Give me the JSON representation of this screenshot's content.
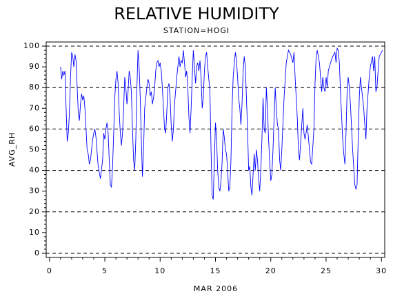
{
  "chart_data": {
    "type": "line",
    "title": "RELATIVE HUMIDITY",
    "subtitle": "STATION=HOGI",
    "x_label": "MAR 2006",
    "y_label": "AVG_RH",
    "xlim": [
      -0.3,
      30.3
    ],
    "xticks": [
      0,
      5,
      10,
      15,
      20,
      25,
      30
    ],
    "ylim": [
      -2,
      102
    ],
    "yticks": [
      0,
      10,
      20,
      30,
      40,
      50,
      60,
      70,
      80,
      90,
      100
    ],
    "grid_lines": [
      0,
      20,
      40,
      60,
      80,
      100
    ],
    "grid": true,
    "series": [
      {
        "name": "AVG_RH",
        "color": "#0000ff",
        "x": [
          1.0,
          1.1,
          1.2,
          1.3,
          1.4,
          1.5,
          1.6,
          1.7,
          1.8,
          1.9,
          2.0,
          2.1,
          2.2,
          2.3,
          2.4,
          2.5,
          2.6,
          2.7,
          2.8,
          2.9,
          3.0,
          3.1,
          3.2,
          3.3,
          3.4,
          3.5,
          3.6,
          3.7,
          3.8,
          3.9,
          4.0,
          4.1,
          4.2,
          4.4,
          4.6,
          4.8,
          4.9,
          5.0,
          5.1,
          5.2,
          5.3,
          5.4,
          5.5,
          5.6,
          5.7,
          5.8,
          5.9,
          6.0,
          6.1,
          6.2,
          6.3,
          6.4,
          6.5,
          6.6,
          6.7,
          6.8,
          6.9,
          7.0,
          7.1,
          7.2,
          7.3,
          7.4,
          7.5,
          7.6,
          7.7,
          7.8,
          7.9,
          8.0,
          8.1,
          8.2,
          8.3,
          8.4,
          8.5,
          8.6,
          8.8,
          8.9,
          9.0,
          9.1,
          9.2,
          9.3,
          9.4,
          9.5,
          9.6,
          9.7,
          9.8,
          9.9,
          10.0,
          10.1,
          10.2,
          10.3,
          10.4,
          10.5,
          10.6,
          10.7,
          10.8,
          10.9,
          11.0,
          11.1,
          11.2,
          11.3,
          11.5,
          11.6,
          11.7,
          11.8,
          11.9,
          12.0,
          12.1,
          12.2,
          12.3,
          12.4,
          12.5,
          12.6,
          12.7,
          12.8,
          12.9,
          13.0,
          13.1,
          13.2,
          13.3,
          13.4,
          13.5,
          13.6,
          13.7,
          13.8,
          13.9,
          14.0,
          14.1,
          14.2,
          14.3,
          14.4,
          14.5,
          14.6,
          14.7,
          14.8,
          14.9,
          15.0,
          15.1,
          15.2,
          15.3,
          15.4,
          15.5,
          15.6,
          15.7,
          15.8,
          15.9,
          16.0,
          16.1,
          16.2,
          16.3,
          16.4,
          16.5,
          16.6,
          16.7,
          16.8,
          16.9,
          17.0,
          17.1,
          17.2,
          17.3,
          17.4,
          17.5,
          17.6,
          17.7,
          17.8,
          17.9,
          18.0,
          18.1,
          18.2,
          18.3,
          18.4,
          18.5,
          18.6,
          18.7,
          18.8,
          18.9,
          19.0,
          19.1,
          19.2,
          19.3,
          19.4,
          19.5,
          19.6,
          19.7,
          19.8,
          19.9,
          20.0,
          20.1,
          20.2,
          20.3,
          20.4,
          20.5,
          20.6,
          20.7,
          20.8,
          20.9,
          21.0,
          21.2,
          21.4,
          21.6,
          21.8,
          22.0,
          22.1,
          22.2,
          22.4,
          22.5,
          22.6,
          22.8,
          22.9,
          23.0,
          23.1,
          23.3,
          23.5,
          23.6,
          23.7,
          23.9,
          24.0,
          24.1,
          24.2,
          24.4,
          24.5,
          24.6,
          24.7,
          24.8,
          24.9,
          25.0,
          25.1,
          25.2,
          25.4,
          25.6,
          25.8,
          25.9,
          26.0,
          26.1,
          26.2,
          26.3,
          26.5,
          26.6,
          26.7,
          26.8,
          26.9,
          27.0,
          27.1,
          27.2,
          27.4,
          27.6,
          27.7,
          27.8,
          27.9,
          28.0,
          28.1,
          28.2,
          28.4,
          28.5,
          28.6,
          28.7,
          28.9,
          29.0,
          29.2,
          29.3,
          29.4,
          29.5,
          29.6,
          29.7,
          29.8,
          30.0,
          30.1
        ],
        "values": [
          90,
          84,
          88,
          86,
          88,
          70,
          54,
          58,
          68,
          85,
          97,
          95,
          90,
          96,
          93,
          80,
          68,
          64,
          72,
          77,
          74,
          76,
          70,
          60,
          50,
          48,
          43,
          45,
          50,
          55,
          58,
          60,
          56,
          42,
          36,
          45,
          58,
          55,
          60,
          63,
          58,
          45,
          33,
          32,
          42,
          58,
          75,
          84,
          88,
          82,
          68,
          58,
          52,
          58,
          70,
          85,
          80,
          72,
          78,
          88,
          85,
          78,
          60,
          45,
          40,
          55,
          80,
          98,
          90,
          75,
          55,
          37,
          50,
          70,
          80,
          84,
          82,
          76,
          78,
          72,
          75,
          80,
          88,
          92,
          93,
          90,
          92,
          88,
          80,
          70,
          60,
          58,
          68,
          80,
          82,
          75,
          62,
          54,
          60,
          72,
          85,
          90,
          95,
          90,
          93,
          92,
          98,
          92,
          85,
          88,
          80,
          66,
          58,
          70,
          85,
          98,
          90,
          82,
          90,
          92,
          88,
          93,
          85,
          70,
          75,
          88,
          95,
          97,
          90,
          84,
          78,
          50,
          28,
          26,
          45,
          63,
          55,
          40,
          32,
          30,
          35,
          44,
          60,
          56,
          50,
          48,
          40,
          30,
          32,
          45,
          70,
          85,
          92,
          97,
          93,
          85,
          75,
          70,
          62,
          72,
          88,
          95,
          90,
          75,
          60,
          40,
          42,
          32,
          28,
          38,
          48,
          40,
          50,
          45,
          36,
          30,
          40,
          55,
          75,
          60,
          58,
          80,
          70,
          55,
          45,
          35,
          38,
          50,
          65,
          80,
          70,
          62,
          60,
          45,
          40,
          50,
          75,
          92,
          98,
          96,
          92,
          97,
          85,
          65,
          50,
          45,
          62,
          70,
          58,
          55,
          62,
          50,
          44,
          43,
          60,
          82,
          95,
          98,
          92,
          85,
          78,
          85,
          80,
          78,
          85,
          80,
          88,
          92,
          95,
          97,
          92,
          99,
          98,
          92,
          78,
          55,
          48,
          43,
          58,
          78,
          85,
          80,
          72,
          50,
          33,
          31,
          33,
          55,
          75,
          85,
          80,
          70,
          62,
          55,
          70,
          85,
          90,
          95,
          88,
          95,
          78,
          80,
          88,
          95,
          97,
          98
        ]
      }
    ]
  }
}
